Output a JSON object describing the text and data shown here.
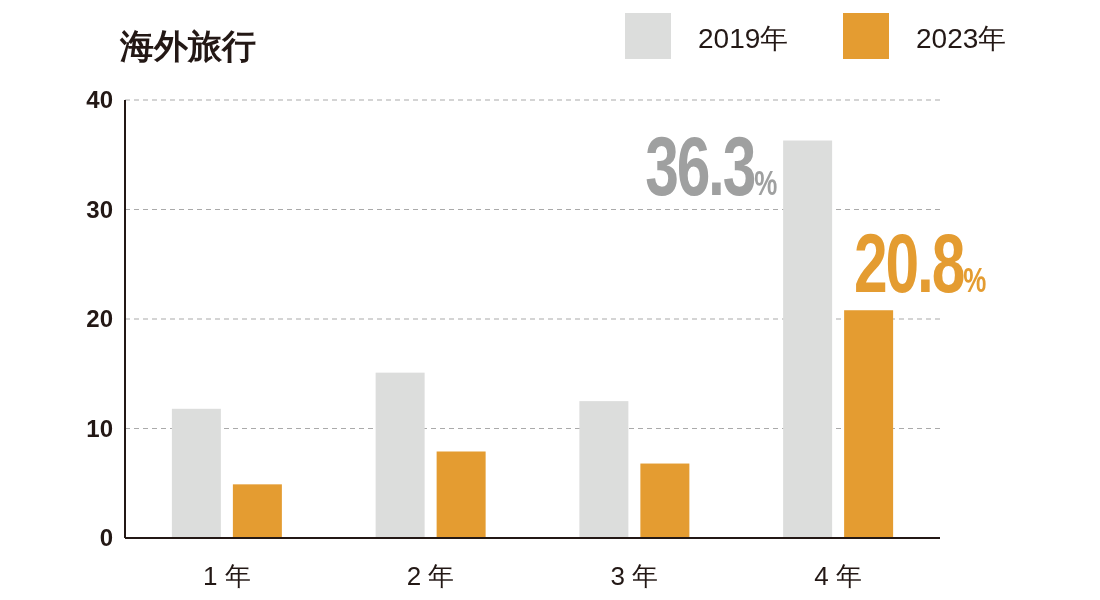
{
  "chart_data": {
    "type": "bar",
    "title": "海外旅行",
    "categories": [
      "1 年",
      "2 年",
      "3 年",
      "4 年"
    ],
    "series": [
      {
        "name": "2019年",
        "color": "#dcdddc",
        "values": [
          11.8,
          15.1,
          12.5,
          36.3
        ],
        "value_labels": [
          null,
          null,
          null,
          "36.3%"
        ]
      },
      {
        "name": "2023年",
        "color": "#e49c31",
        "values": [
          4.9,
          7.9,
          6.8,
          20.8
        ],
        "value_labels": [
          null,
          null,
          null,
          "20.8%"
        ]
      }
    ],
    "ylim": [
      0,
      40
    ],
    "yticks": [
      0,
      10,
      20,
      30,
      40
    ],
    "grid": "y",
    "legend": "top right"
  }
}
